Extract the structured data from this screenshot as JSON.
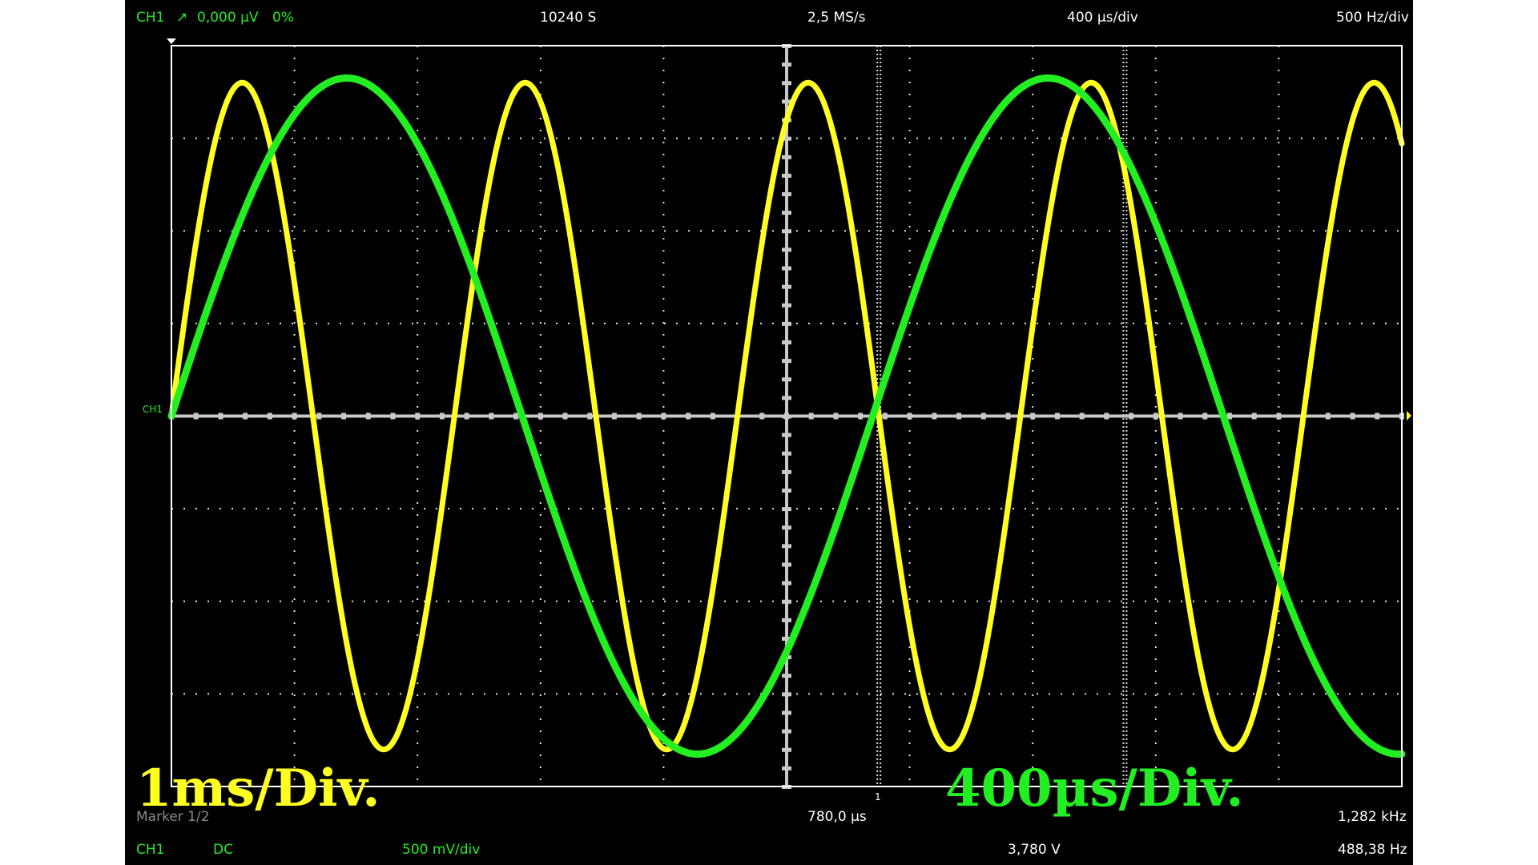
{
  "top_bar": {
    "channel": "CH1",
    "trigger_icon": "trigger-rising-edge-icon",
    "trigger_glyph": "↗",
    "trigger_level": "0,000 µV",
    "trigger_percent": "0%",
    "samples": "10240 S",
    "sample_rate": "2,5 MS/s",
    "timebase": "400 µs/div",
    "freq_per_div": "500 Hz/div"
  },
  "bottom_bar": {
    "marker": "Marker 1/2",
    "marker_time": "780,0 µs",
    "marker_freq": "1,282 kHz",
    "channel": "CH1",
    "coupling": "DC",
    "volts_per_div": "500 mV/div",
    "voltage": "3,780 V",
    "frequency": "488,38 Hz"
  },
  "screen_labels": {
    "ch1_marker": "CH1",
    "marker_number": "1"
  },
  "annotations": {
    "yellow_text": "1ms/Div.",
    "green_text": "400µs/Div."
  },
  "colors": {
    "background": "#000000",
    "grid": "#ffffff",
    "axes": "#c8c8c8",
    "yellow_trace": "#ffff22",
    "green_trace": "#22ee22",
    "label_green": "#22ee22",
    "label_white": "#ffffff"
  },
  "chart_data": {
    "type": "line",
    "divisions_x": 10,
    "divisions_y": 8,
    "x_unit": "div",
    "y_unit": "div",
    "xlim": [
      0,
      10
    ],
    "ylim": [
      -4,
      4
    ],
    "grid": true,
    "series": [
      {
        "name": "1ms/Div.",
        "color": "#ffff22",
        "amplitude_div": 3.6,
        "period_div": 2.3,
        "phase_start": "rising through zero at x=0",
        "peaks_x_div": [
          0.55,
          2.85,
          5.15,
          7.4,
          9.7
        ],
        "troughs_x_div": [
          1.7,
          4.0,
          6.3,
          8.55
        ]
      },
      {
        "name": "400µs/Div.",
        "color": "#22ee22",
        "amplitude_div": 3.65,
        "period_div": 5.7,
        "phase_start": "rising through zero at x=0",
        "peaks_x_div": [
          1.4,
          7.1
        ],
        "troughs_x_div": [
          4.25,
          9.95
        ]
      }
    ],
    "cursors_x_div": [
      5.0,
      5.75,
      7.75
    ]
  }
}
